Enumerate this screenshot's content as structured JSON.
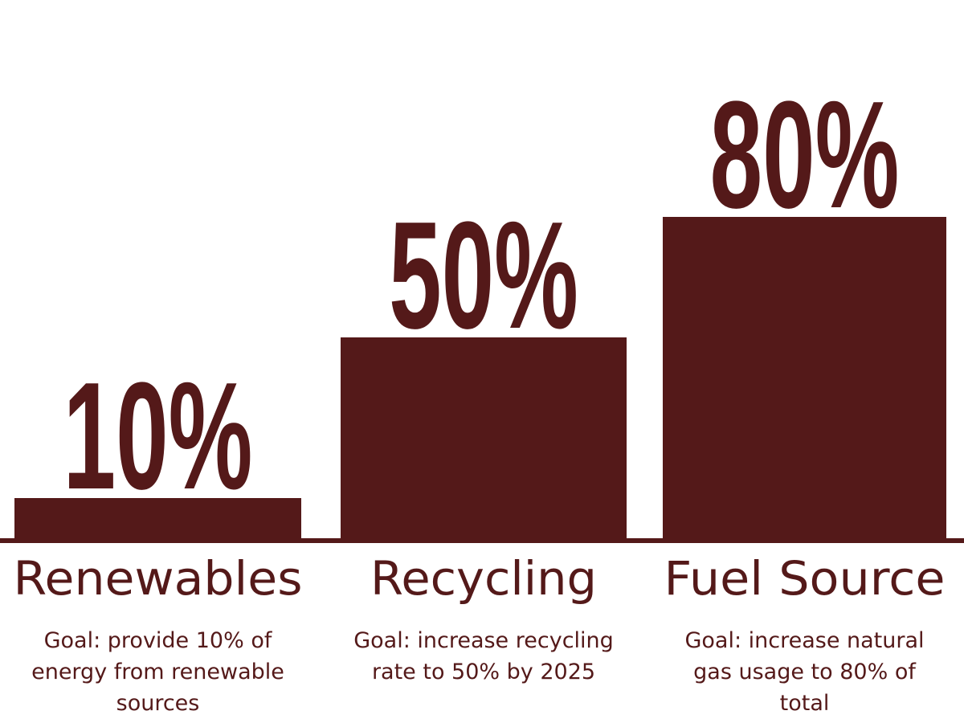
{
  "colors": {
    "bar": "#541919",
    "text": "#541919",
    "background": "#ffffff"
  },
  "chart_data": {
    "type": "bar",
    "categories": [
      "Renewables",
      "Recycling",
      "Fuel Source"
    ],
    "values": [
      10,
      50,
      80
    ],
    "value_labels": [
      "10%",
      "50%",
      "80%"
    ],
    "descriptions": [
      [
        "Goal: provide 10% of",
        "energy from renewable",
        "sources"
      ],
      [
        "Goal: increase recycling",
        "rate to 50% by 2025"
      ],
      [
        "Goal: increase natural",
        "gas usage to 80% of",
        "total"
      ]
    ],
    "ylim": [
      0,
      100
    ],
    "grid": false,
    "legend": "none"
  }
}
